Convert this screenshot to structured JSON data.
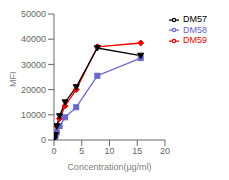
{
  "chart_data": {
    "type": "line",
    "xlabel": "Concentration(μg/ml)",
    "ylabel": "MFI",
    "x": [
      0.125,
      0.25,
      0.5,
      1,
      2,
      4,
      7.8125,
      15.625
    ],
    "series": [
      {
        "name": "DM59",
        "color": "#EE0000",
        "marker": "diamond",
        "values": [
          700,
          2200,
          5500,
          8500,
          13500,
          20000,
          37000,
          38500
        ]
      },
      {
        "name": "DM58",
        "color": "#6666CC",
        "marker": "square",
        "values": [
          500,
          1500,
          3000,
          5500,
          9000,
          13000,
          25500,
          32500
        ]
      },
      {
        "name": "DM57",
        "color": "#000000",
        "marker": "triangle_down",
        "values": [
          600,
          2000,
          5500,
          9500,
          15000,
          21000,
          36500,
          33500
        ]
      }
    ],
    "xlim": [
      0,
      20
    ],
    "xticks": [
      0,
      5,
      10,
      15,
      20
    ],
    "ylim": [
      0,
      50000
    ],
    "yticks": [
      0,
      10000,
      20000,
      30000,
      40000,
      50000
    ],
    "grid": false,
    "legend": "right"
  }
}
